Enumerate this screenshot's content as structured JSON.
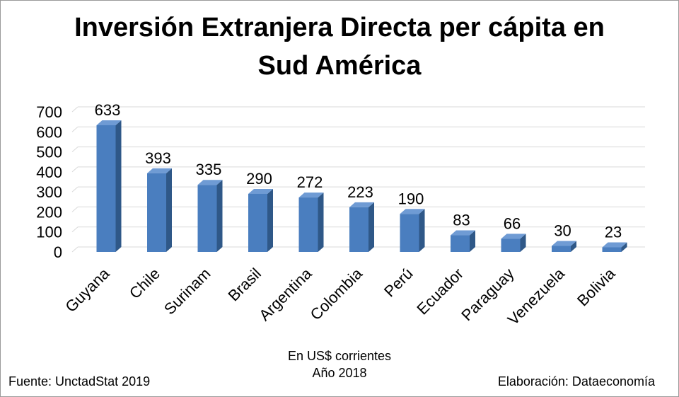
{
  "chart_data": {
    "type": "bar",
    "title_lines": [
      "Inversión Extranjera Directa per cápita en",
      "Sud América"
    ],
    "categories": [
      "Guyana",
      "Chile",
      "Surinam",
      "Brasil",
      "Argentina",
      "Colombia",
      "Perú",
      "Ecuador",
      "Paraguay",
      "Venezuela",
      "Bolivia"
    ],
    "values": [
      633,
      393,
      335,
      290,
      272,
      223,
      190,
      83,
      66,
      30,
      23
    ],
    "data_labels": [
      "633",
      "393",
      "335",
      "290",
      "272",
      "223",
      "190",
      "83",
      "66",
      "30",
      "23"
    ],
    "yticks": [
      0,
      100,
      200,
      300,
      400,
      500,
      600,
      700
    ],
    "ylim": [
      0,
      700
    ],
    "grid": true,
    "legend": "none",
    "bar_style": "3d-column",
    "colors": {
      "bar_front": "#4a7ebf",
      "bar_side": "#2f5888",
      "bar_top": "#6f9bd4",
      "grid": "#d9d9d9"
    }
  },
  "notes": {
    "units_line1": "En US$ corrientes",
    "units_line2": "Año 2018",
    "source": "Fuente: UnctadStat 2019",
    "credit": "Elaboración: Dataeconomía"
  }
}
